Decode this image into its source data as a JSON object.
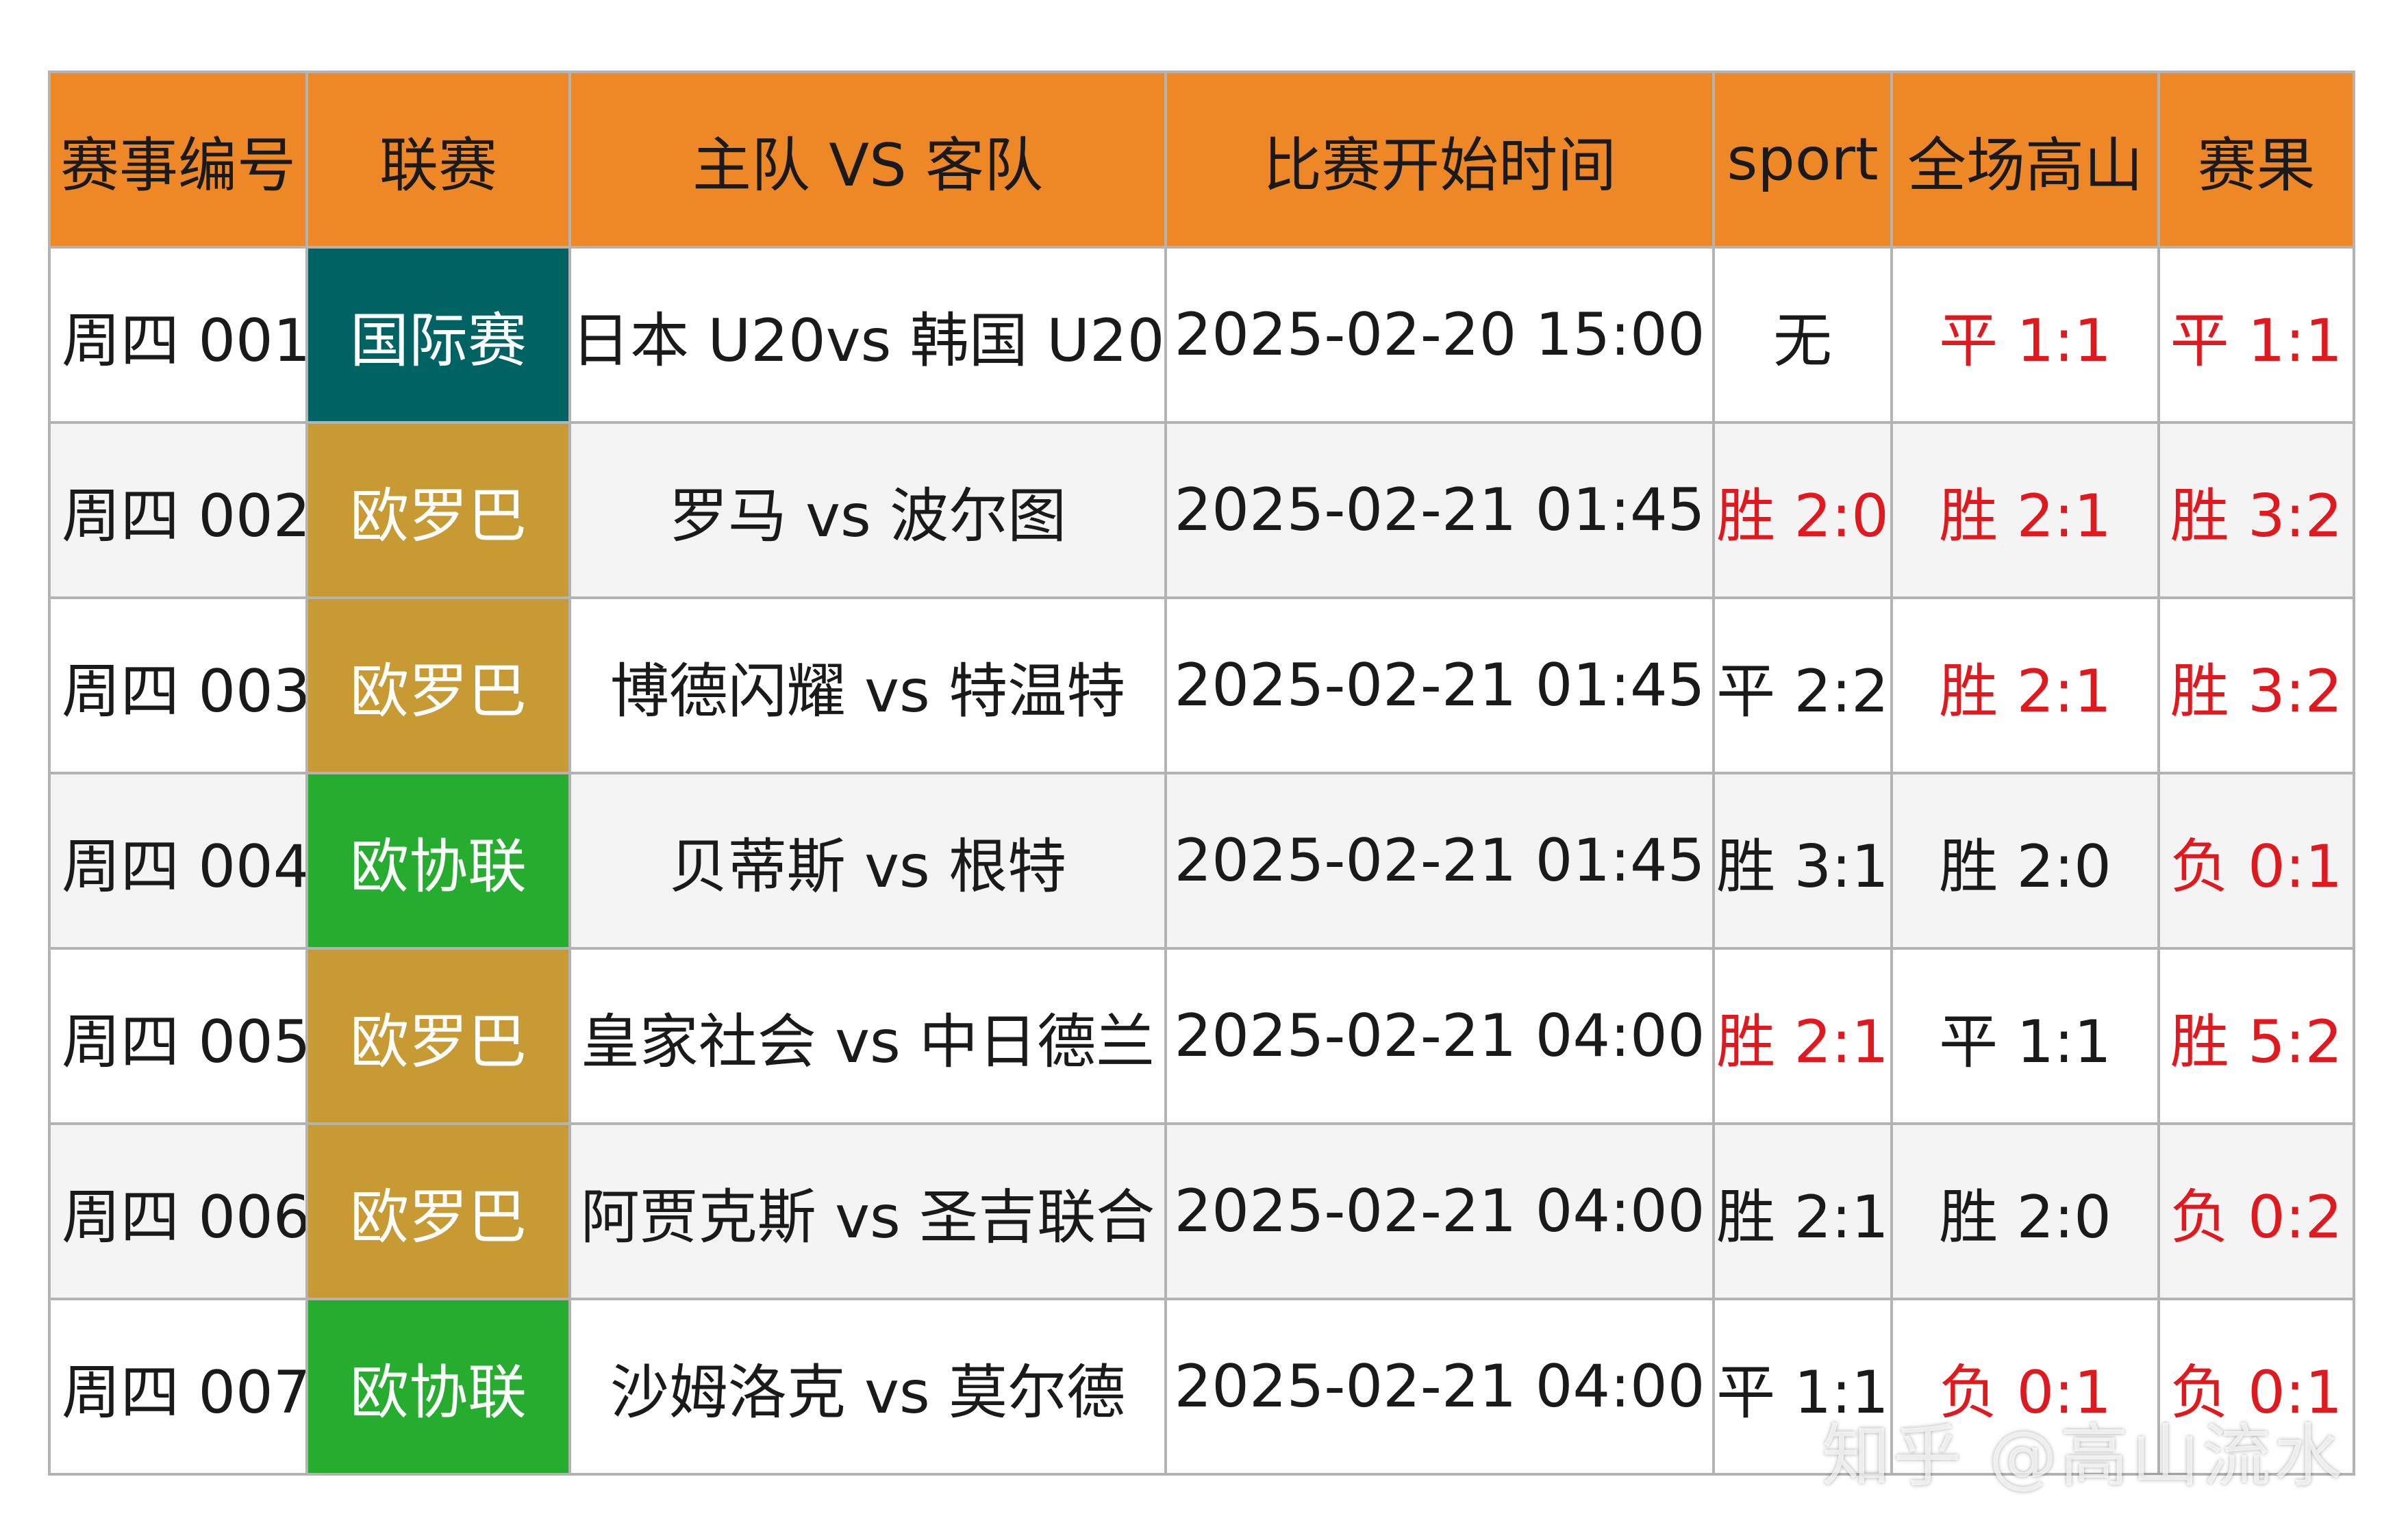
{
  "table": {
    "headers": [
      "赛事编号",
      "联赛",
      "主队 VS 客队",
      "比赛开始时间",
      "sport",
      "全场高山",
      "赛果"
    ],
    "rows": [
      {
        "id": "周四 001",
        "league": "国际赛",
        "league_color": "#006363",
        "match": "日本 U20vs 韩国 U20",
        "time": "2025-02-20 15:00",
        "sport": "无",
        "sport_red": false,
        "gaoshan": "平 1:1",
        "gaoshan_red": true,
        "result": "平 1:1",
        "result_red": true
      },
      {
        "id": "周四 002",
        "league": "欧罗巴",
        "league_color": "#c89a33",
        "match": "罗马 vs 波尔图",
        "time": "2025-02-21 01:45",
        "sport": "胜 2:0",
        "sport_red": true,
        "gaoshan": "胜 2:1",
        "gaoshan_red": true,
        "result": "胜 3:2",
        "result_red": true
      },
      {
        "id": "周四 003",
        "league": "欧罗巴",
        "league_color": "#c89a33",
        "match": "博德闪耀 vs 特温特",
        "time": "2025-02-21 01:45",
        "sport": "平 2:2",
        "sport_red": false,
        "gaoshan": "胜 2:1",
        "gaoshan_red": true,
        "result": "胜 3:2",
        "result_red": true
      },
      {
        "id": "周四 004",
        "league": "欧协联",
        "league_color": "#26ad2f",
        "match": "贝蒂斯 vs 根特",
        "time": "2025-02-21 01:45",
        "sport": "胜 3:1",
        "sport_red": false,
        "gaoshan": "胜 2:0",
        "gaoshan_red": false,
        "result": "负 0:1",
        "result_red": true
      },
      {
        "id": "周四 005",
        "league": "欧罗巴",
        "league_color": "#c89a33",
        "match": "皇家社会 vs 中日德兰",
        "time": "2025-02-21 04:00",
        "sport": "胜 2:1",
        "sport_red": true,
        "gaoshan": "平 1:1",
        "gaoshan_red": false,
        "result": "胜 5:2",
        "result_red": true
      },
      {
        "id": "周四 006",
        "league": "欧罗巴",
        "league_color": "#c89a33",
        "match": "阿贾克斯 vs 圣吉联合",
        "time": "2025-02-21 04:00",
        "sport": "胜 2:1",
        "sport_red": false,
        "gaoshan": "胜 2:0",
        "gaoshan_red": false,
        "result": "负 0:2",
        "result_red": true
      },
      {
        "id": "周四 007",
        "league": "欧协联",
        "league_color": "#26ad2f",
        "match": "沙姆洛克 vs 莫尔德",
        "time": "2025-02-21 04:00",
        "sport": "平 1:1",
        "sport_red": false,
        "gaoshan": "负 0:1",
        "gaoshan_red": true,
        "result": "负 0:1",
        "result_red": true
      }
    ]
  },
  "watermark": "知乎 @高山流水"
}
